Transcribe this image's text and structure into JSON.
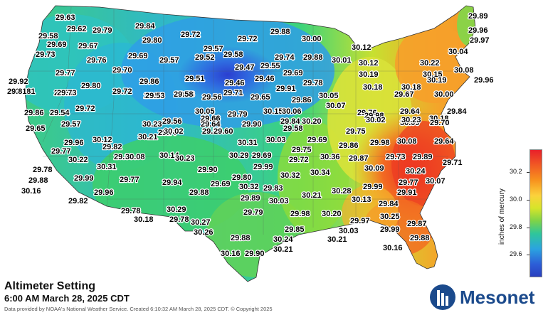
{
  "map": {
    "title": "Altimeter Setting",
    "subtitle": "6:00 AM March 28, 2025 CDT",
    "credit": "Data provided by NOAA's National Weather Service. Created 6:10:32 AM March 28, 2025 CDT. © Copyright 2025",
    "brand": "Mesonet",
    "legend": {
      "title": "inches of mercury",
      "ticks": [
        "30.2",
        "30.0",
        "29.8",
        "29.6"
      ],
      "colors": [
        "#e8202a",
        "#f7931e",
        "#fbd23c",
        "#7ed348",
        "#2fc69a",
        "#2ba4e0",
        "#2a3fbf"
      ]
    },
    "stations": [
      "29.63",
      "29.62",
      "29.79",
      "29.84",
      "29.58",
      "29.69",
      "29.67",
      "29.80",
      "29.72",
      "29.72",
      "29.88",
      "29.89",
      "30.00",
      "29.96",
      "29.97",
      "29.73",
      "29.76",
      "29.69",
      "29.57",
      "29.57",
      "29.52",
      "29.58",
      "30.12",
      "29.77",
      "29.70",
      "29.47",
      "29.55",
      "29.74",
      "29.88",
      "30.01",
      "30.04",
      "29.80",
      "29.86",
      "29.51",
      "29.46",
      "29.46",
      "29.69",
      "29.78",
      "30.12",
      "30.22",
      "30.08",
      "29.92",
      "29.81",
      "29.77",
      "29.72",
      "29.53",
      "29.53",
      "29.56",
      "29.65",
      "29.91",
      "30.05",
      "30.19",
      "30.15",
      "29.96",
      "29.81",
      "29.73",
      "29.53",
      "29.58",
      "29.71",
      "29.86",
      "30.07",
      "30.18",
      "30.18",
      "30.19",
      "30.00",
      "29.86",
      "29.54",
      "29.72",
      "30.05",
      "30.15",
      "29.76",
      "29.67",
      "29.57",
      "29.56",
      "29.66",
      "29.79",
      "29.90",
      "30.06",
      "30.20",
      "29.98",
      "29.64",
      "29.77",
      "29.57",
      "29.84",
      "30.09",
      "30.18",
      "30.23",
      "30.02",
      "29.64",
      "29.58",
      "30.02",
      "30.23",
      "29.70",
      "29.65",
      "29.60",
      "29.75",
      "29.84",
      "29.96",
      "30.12",
      "30.21",
      "30.31",
      "30.03",
      "29.69",
      "29.98",
      "30.08",
      "29.64",
      "29.77",
      "29.82",
      "29.75",
      "29.86",
      "29.99",
      "30.08",
      "30.14",
      "30.23",
      "30.29",
      "29.69",
      "29.72",
      "30.36",
      "29.87",
      "29.73",
      "29.89",
      "30.22",
      "30.31",
      "29.71",
      "29.78",
      "29.90",
      "29.99",
      "30.09",
      "30.24",
      "29.99",
      "29.77",
      "29.80",
      "30.32",
      "30.34",
      "29.99",
      "29.88",
      "29.94",
      "29.69",
      "29.77",
      "30.07",
      "30.16",
      "30.32",
      "29.83",
      "29.88",
      "29.96",
      "30.21",
      "30.28",
      "29.91",
      "29.82",
      "29.89",
      "30.03",
      "30.13",
      "29.84",
      "29.78",
      "30.29",
      "29.79",
      "29.98",
      "30.20",
      "30.18",
      "29.78",
      "30.25",
      "30.27",
      "29.85",
      "29.97",
      "30.03",
      "30.26",
      "29.99",
      "29.87",
      "29.88",
      "30.24",
      "30.21",
      "29.88",
      "30.21",
      "30.16",
      "29.90",
      "30.16"
    ]
  }
}
